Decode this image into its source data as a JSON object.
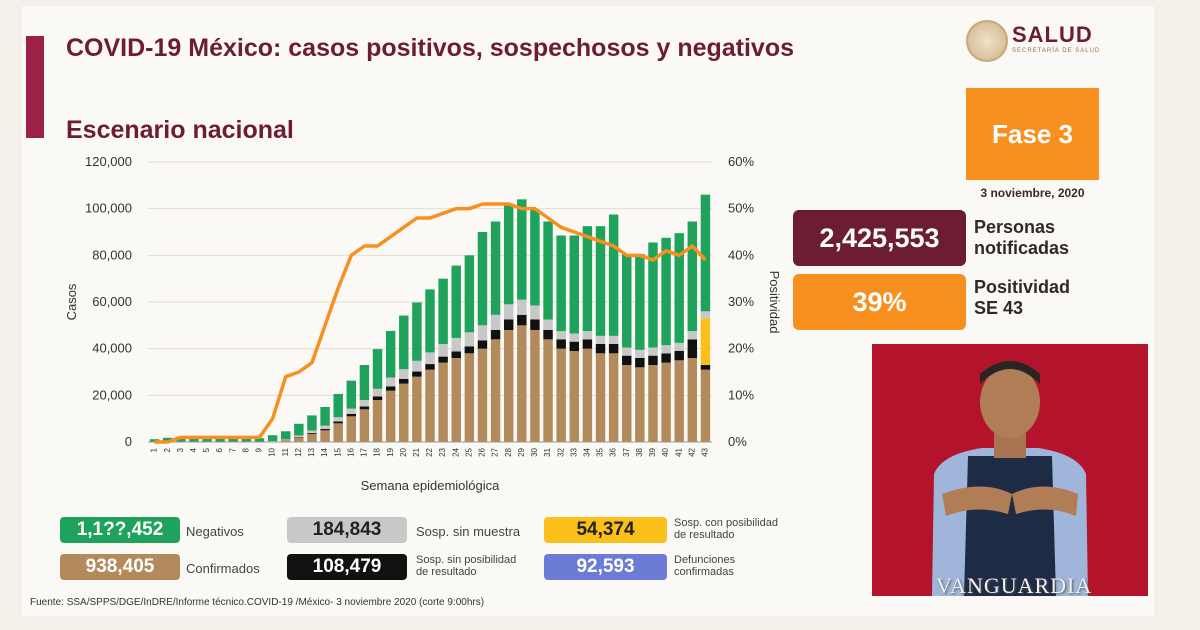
{
  "header": {
    "title": "COVID-19 México: casos positivos, sospechosos y negativos",
    "subtitle": "Escenario nacional",
    "logo_text": "SALUD",
    "logo_subtext": "SECRETARÍA DE SALUD",
    "phase": "Fase 3",
    "date": "3 noviembre, 2020"
  },
  "kpis": [
    {
      "value": "2,425,553",
      "label_line1": "Personas",
      "label_line2": "notificadas",
      "color": "#6c1d34"
    },
    {
      "value": "39%",
      "label_line1": "Positividad",
      "label_line2": "SE 43",
      "color": "#f7901e"
    }
  ],
  "legend": [
    {
      "value": "1,1??,452",
      "label_line1": "Negativos",
      "label_line2": "",
      "color": "#1fa35c"
    },
    {
      "value": "184,843",
      "label_line1": "Sosp. sin muestra",
      "label_line2": "",
      "color": "#c8c8c8"
    },
    {
      "value": "54,374",
      "label_line1": "Sosp. con posibilidad",
      "label_line2": "de resultado",
      "color": "#fbbf1a"
    },
    {
      "value": "938,405",
      "label_line1": "Confirmados",
      "label_line2": "",
      "color": "#b28a5c"
    },
    {
      "value": "108,479",
      "label_line1": "Sosp. sin posibilidad",
      "label_line2": "de resultado",
      "color": "#111111"
    },
    {
      "value": "92,593",
      "label_line1": "Defunciones",
      "label_line2": "confirmadas",
      "color": "#6b7bd6"
    }
  ],
  "source": "Fuente: SSA/SPPS/DGE/InDRE/Informe técnico.COVID-19 /México- 3 noviembre 2020 (corte 9:00hrs)",
  "watermark": "VANGUARDIA",
  "chart_data": {
    "type": "bar",
    "xlabel": "Semana epidemiológica",
    "ylabel": "Casos",
    "y2label": "Positividad",
    "ylim": [
      0,
      120000
    ],
    "y2lim": [
      0,
      60
    ],
    "yticks": [
      "0",
      "20,000",
      "40,000",
      "60,000",
      "80,000",
      "100,000",
      "120,000"
    ],
    "y2ticks": [
      "0%",
      "10%",
      "20%",
      "30%",
      "40%",
      "50%",
      "60%"
    ],
    "categories": [
      "1",
      "2",
      "3",
      "4",
      "5",
      "6",
      "7",
      "8",
      "9",
      "10",
      "11",
      "12",
      "13",
      "14",
      "15",
      "16",
      "17",
      "18",
      "19",
      "20",
      "21",
      "22",
      "23",
      "24",
      "25",
      "26",
      "27",
      "28",
      "29",
      "30",
      "31",
      "32",
      "33",
      "34",
      "35",
      "36",
      "37",
      "38",
      "39",
      "40",
      "41",
      "42",
      "43"
    ],
    "stacked": true,
    "series": [
      {
        "name": "Confirmados",
        "color": "#b28a5c",
        "values": [
          0,
          0,
          0,
          0,
          0,
          0,
          0,
          0,
          50,
          300,
          800,
          2000,
          3500,
          5000,
          8000,
          11000,
          14000,
          18000,
          22000,
          25000,
          28000,
          31000,
          34000,
          36000,
          38000,
          40000,
          44000,
          48000,
          50000,
          48000,
          44000,
          40000,
          39000,
          40000,
          38000,
          38000,
          33000,
          32000,
          33000,
          34000,
          35000,
          36000,
          31000
        ]
      },
      {
        "name": "Sosp. sin posibilidad de resultado",
        "color": "#111111",
        "values": [
          0,
          0,
          0,
          0,
          0,
          0,
          0,
          0,
          0,
          0,
          0,
          200,
          400,
          600,
          800,
          1000,
          1200,
          1500,
          1800,
          2000,
          2200,
          2400,
          2600,
          2800,
          3000,
          3500,
          4000,
          4500,
          4500,
          4500,
          4000,
          4000,
          4000,
          4000,
          4000,
          4000,
          4000,
          4000,
          4000,
          4000,
          4000,
          8000,
          2000
        ]
      },
      {
        "name": "Sosp. con posibilidad de resultado",
        "color": "#fbbf1a",
        "values": [
          0,
          0,
          0,
          0,
          0,
          0,
          0,
          0,
          0,
          0,
          0,
          0,
          0,
          0,
          0,
          0,
          0,
          0,
          0,
          0,
          0,
          0,
          0,
          0,
          0,
          0,
          0,
          0,
          0,
          0,
          0,
          0,
          0,
          0,
          0,
          0,
          0,
          0,
          0,
          0,
          0,
          0,
          20000
        ]
      },
      {
        "name": "Sosp. sin muestra",
        "color": "#c8c8c8",
        "values": [
          0,
          0,
          0,
          0,
          0,
          0,
          0,
          0,
          0,
          100,
          300,
          600,
          1000,
          1400,
          1800,
          2300,
          2800,
          3300,
          3800,
          4200,
          4600,
          5000,
          5400,
          5800,
          6000,
          6500,
          6500,
          6500,
          6500,
          6000,
          4500,
          3500,
          3500,
          3500,
          3500,
          3500,
          3500,
          3500,
          3500,
          3500,
          3500,
          3500,
          3000
        ]
      },
      {
        "name": "Negativos",
        "color": "#1fa35c",
        "values": [
          1200,
          1800,
          2200,
          2300,
          2100,
          1800,
          1600,
          1500,
          1600,
          2500,
          3500,
          5000,
          6500,
          8000,
          10000,
          12000,
          15000,
          17000,
          20000,
          23000,
          25000,
          27000,
          28000,
          31000,
          33000,
          40000,
          40000,
          43000,
          43000,
          41000,
          42000,
          41000,
          42000,
          45000,
          47000,
          52000,
          40000,
          41000,
          45000,
          46000,
          47000,
          47000,
          50000
        ]
      }
    ],
    "line_series": {
      "name": "Positividad",
      "color": "#f7901e",
      "axis": "right",
      "values": [
        0,
        0,
        1,
        1,
        1,
        1,
        1,
        1,
        1,
        5,
        14,
        15,
        17,
        25,
        33,
        40,
        42,
        42,
        44,
        46,
        48,
        48,
        49,
        50,
        50,
        51,
        51,
        51,
        50,
        50,
        48,
        46,
        45,
        44,
        43,
        42,
        40,
        40,
        39,
        41,
        40,
        42,
        39
      ]
    }
  }
}
